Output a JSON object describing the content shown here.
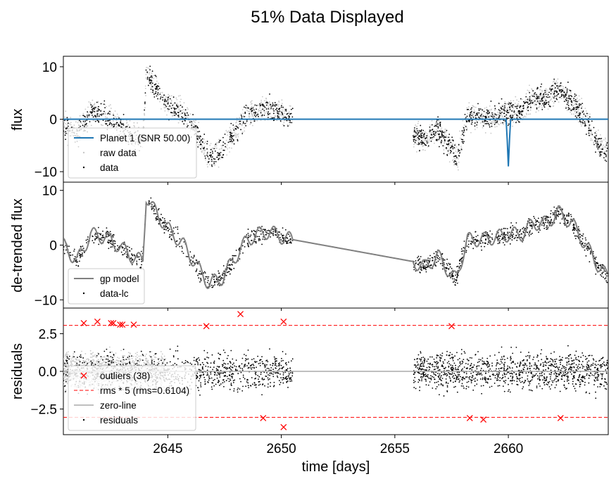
{
  "figure": {
    "title": "51% Data Displayed",
    "xlabel": "time [days]",
    "xlim": [
      2640.4,
      2664.4
    ],
    "xticks": [
      2645,
      2650,
      2655,
      2660
    ],
    "xtick_labels": [
      "2645",
      "2650",
      "2655",
      "2660"
    ]
  },
  "chart_data": [
    {
      "type": "scatter",
      "panel": "flux",
      "ylabel": "flux",
      "ylim": [
        -12,
        12
      ],
      "yticks": [
        -10,
        0,
        10
      ],
      "ytick_labels": [
        "−10",
        "0",
        "10"
      ],
      "legend_position": "lower-left",
      "series": [
        {
          "name": "Planet 1 (SNR 50.00)",
          "style": "line",
          "color": "#1f77b4",
          "x": [
            2640.4,
            2659.9,
            2659.95,
            2660.0,
            2660.05,
            2660.1,
            2664.4
          ],
          "y": [
            0,
            0,
            -4,
            -9,
            -4,
            0,
            0
          ]
        },
        {
          "name": "raw data",
          "style": "dots",
          "color": "#c8c8c8"
        },
        {
          "name": "data",
          "style": "dots",
          "color": "#000000",
          "trend_x": [
            2640.4,
            2641,
            2641.6,
            2642.2,
            2642.8,
            2643.4,
            2643.9,
            2644.05,
            2644.3,
            2645,
            2645.7,
            2646.3,
            2646.8,
            2647.4,
            2648,
            2648.5,
            2649,
            2649.5,
            2650,
            2650.5,
            2655.8,
            2656.3,
            2656.9,
            2657.6,
            2657.7,
            2658.2,
            2658.9,
            2659.5,
            2660.1,
            2660.6,
            2661.1,
            2661.7,
            2662.2,
            2662.8,
            2663.4,
            2664,
            2664.4
          ],
          "trend_y": [
            -1,
            -3,
            1.5,
            1,
            -1,
            -3,
            -4,
            9,
            7,
            3,
            1,
            -3,
            -7,
            -6,
            -2,
            1,
            1.5,
            2,
            1,
            0.5,
            -3,
            -4,
            -2,
            -6,
            -8,
            0.5,
            0.5,
            0.5,
            1.5,
            1.5,
            4,
            4,
            6,
            3,
            0,
            -5,
            -6
          ],
          "noise": 1.6,
          "points": 1400
        }
      ]
    },
    {
      "type": "scatter",
      "panel": "detrended",
      "ylabel": "de-trended flux",
      "ylim": [
        -11.5,
        11.5
      ],
      "yticks": [
        -10,
        0,
        10
      ],
      "ytick_labels": [
        "−10",
        "0",
        "10"
      ],
      "legend_position": "lower-left",
      "series": [
        {
          "name": "gp model",
          "style": "line",
          "color": "#808080"
        },
        {
          "name": "data-lc",
          "style": "dots",
          "color": "#000000",
          "trend_x": [
            2640.4,
            2641,
            2641.6,
            2642.2,
            2642.8,
            2643.4,
            2643.9,
            2644.05,
            2644.3,
            2645,
            2645.7,
            2646.3,
            2646.8,
            2647.4,
            2648,
            2648.5,
            2649,
            2649.5,
            2650,
            2650.5,
            2655.8,
            2656.3,
            2656.9,
            2657.6,
            2657.7,
            2658.2,
            2658.9,
            2659.5,
            2660.1,
            2660.6,
            2661.1,
            2661.7,
            2662.2,
            2662.8,
            2663.4,
            2664,
            2664.4
          ],
          "trend_y": [
            0,
            -3,
            2,
            1.5,
            0,
            -2,
            -3,
            9,
            7,
            3,
            0,
            -4,
            -7,
            -6,
            -2,
            1,
            2,
            2.5,
            1.5,
            1,
            -3,
            -4,
            -2,
            -6,
            -6,
            1,
            1,
            1.5,
            2,
            2,
            4,
            4,
            6,
            4,
            0,
            -4,
            -6
          ],
          "noise": 1.1,
          "points": 1300
        }
      ]
    },
    {
      "type": "scatter",
      "panel": "residuals",
      "ylabel": "residuals",
      "ylim": [
        -4.2,
        4.2
      ],
      "yticks": [
        -2.5,
        0.0,
        2.5
      ],
      "ytick_labels": [
        "−2.5",
        "0.0",
        "2.5"
      ],
      "legend_position": "lower-left",
      "rms": 0.6104,
      "threshold": 3.052,
      "series": [
        {
          "name": "outliers (38)",
          "style": "x",
          "color": "#ff0000",
          "x": [
            2641.3,
            2641.9,
            2642.5,
            2642.6,
            2642.9,
            2643.0,
            2643.5,
            2646.7,
            2648.2,
            2650.1,
            2657.5,
            2649.2,
            2650.1,
            2658.3,
            2658.9,
            2662.3
          ],
          "y": [
            3.2,
            3.3,
            3.2,
            3.2,
            3.1,
            3.1,
            3.1,
            3.0,
            3.8,
            3.3,
            3.0,
            -3.1,
            -3.7,
            -3.1,
            -3.2,
            -3.1
          ]
        },
        {
          "name": "rms * 5 (rms=0.6104)",
          "style": "dashed",
          "color": "#ff0000"
        },
        {
          "name": "zero-line",
          "style": "line",
          "color": "#aaaaaa"
        },
        {
          "name": "residuals",
          "style": "dots",
          "color": "#000000",
          "noise": 0.85,
          "points": 2200
        }
      ]
    }
  ]
}
